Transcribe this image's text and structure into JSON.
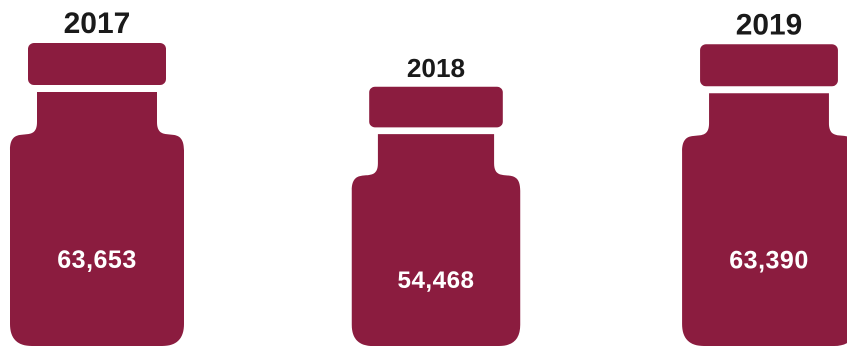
{
  "chart_data": {
    "type": "bar",
    "categories": [
      "2017",
      "2018",
      "2019"
    ],
    "values": [
      63653,
      54468,
      63390
    ],
    "value_labels": [
      "63,653",
      "54,468",
      "63,390"
    ],
    "title": "",
    "xlabel": "",
    "ylabel": "",
    "mark_shape": "bottle",
    "colors": {
      "bottle": "#8b1c3f",
      "value_text": "#ffffff",
      "year_text": "#1a1a1a"
    }
  }
}
